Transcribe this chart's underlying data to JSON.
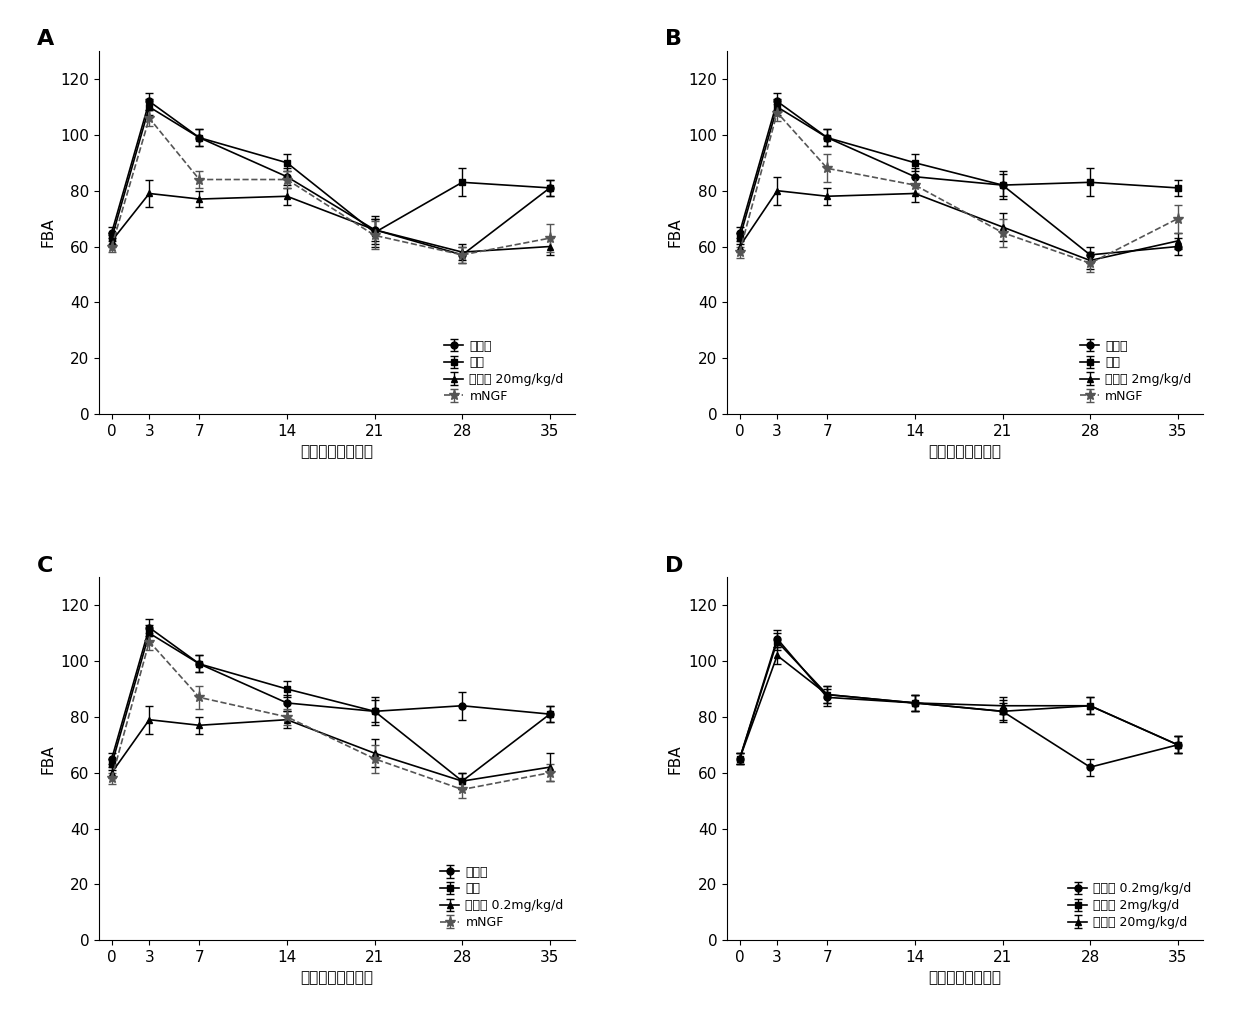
{
  "x": [
    0,
    3,
    7,
    14,
    21,
    28,
    35
  ],
  "panels": [
    {
      "label": "A",
      "series": [
        {
          "name": "假手术",
          "y": [
            65,
            112,
            99,
            85,
            66,
            57,
            81
          ],
          "yerr": [
            2,
            3,
            3,
            3,
            4,
            3,
            3
          ],
          "marker": "o",
          "color": "#000000",
          "linestyle": "-"
        },
        {
          "name": "模型",
          "y": [
            63,
            110,
            99,
            90,
            65,
            83,
            81
          ],
          "yerr": [
            2,
            3,
            3,
            3,
            5,
            5,
            3
          ],
          "marker": "s",
          "color": "#000000",
          "linestyle": "-"
        },
        {
          "name": "槲皮素 20mg/kg/d",
          "y": [
            62,
            79,
            77,
            78,
            66,
            58,
            60
          ],
          "yerr": [
            2,
            5,
            3,
            3,
            5,
            3,
            3
          ],
          "marker": "^",
          "color": "#000000",
          "linestyle": "-"
        },
        {
          "name": "mNGF",
          "y": [
            60,
            106,
            84,
            84,
            64,
            57,
            63
          ],
          "yerr": [
            2,
            3,
            3,
            3,
            5,
            3,
            5
          ],
          "marker": "*",
          "color": "#555555",
          "linestyle": "--"
        }
      ]
    },
    {
      "label": "B",
      "series": [
        {
          "name": "假手术",
          "y": [
            65,
            112,
            99,
            85,
            82,
            57,
            60
          ],
          "yerr": [
            2,
            3,
            3,
            3,
            4,
            3,
            3
          ],
          "marker": "o",
          "color": "#000000",
          "linestyle": "-"
        },
        {
          "name": "模型",
          "y": [
            63,
            110,
            99,
            90,
            82,
            83,
            81
          ],
          "yerr": [
            2,
            3,
            3,
            3,
            5,
            5,
            3
          ],
          "marker": "s",
          "color": "#000000",
          "linestyle": "-"
        },
        {
          "name": "槲皮素 2mg/kg/d",
          "y": [
            60,
            80,
            78,
            79,
            67,
            55,
            62
          ],
          "yerr": [
            2,
            5,
            3,
            3,
            5,
            3,
            3
          ],
          "marker": "^",
          "color": "#000000",
          "linestyle": "-"
        },
        {
          "name": "mNGF",
          "y": [
            58,
            108,
            88,
            82,
            65,
            54,
            70
          ],
          "yerr": [
            2,
            3,
            5,
            3,
            5,
            3,
            5
          ],
          "marker": "*",
          "color": "#555555",
          "linestyle": "--"
        }
      ]
    },
    {
      "label": "C",
      "series": [
        {
          "name": "假手术",
          "y": [
            65,
            112,
            99,
            85,
            82,
            84,
            81
          ],
          "yerr": [
            2,
            3,
            3,
            3,
            4,
            5,
            3
          ],
          "marker": "o",
          "color": "#000000",
          "linestyle": "-"
        },
        {
          "name": "模型",
          "y": [
            63,
            110,
            99,
            90,
            82,
            57,
            81
          ],
          "yerr": [
            2,
            3,
            3,
            3,
            5,
            3,
            3
          ],
          "marker": "s",
          "color": "#000000",
          "linestyle": "-"
        },
        {
          "name": "槲皮素 0.2mg/kg/d",
          "y": [
            60,
            79,
            77,
            79,
            67,
            57,
            62
          ],
          "yerr": [
            2,
            5,
            3,
            3,
            5,
            3,
            5
          ],
          "marker": "^",
          "color": "#000000",
          "linestyle": "-"
        },
        {
          "name": "mNGF",
          "y": [
            58,
            107,
            87,
            80,
            65,
            54,
            60
          ],
          "yerr": [
            2,
            3,
            4,
            3,
            5,
            3,
            3
          ],
          "marker": "*",
          "color": "#555555",
          "linestyle": "--"
        }
      ]
    },
    {
      "label": "D",
      "series": [
        {
          "name": "槲皮素 0.2mg/kg/d",
          "y": [
            65,
            108,
            87,
            85,
            82,
            62,
            70
          ],
          "yerr": [
            2,
            3,
            3,
            3,
            4,
            3,
            3
          ],
          "marker": "o",
          "color": "#000000",
          "linestyle": "-"
        },
        {
          "name": "槲皮素 2mg/kg/d",
          "y": [
            65,
            107,
            88,
            85,
            82,
            84,
            70
          ],
          "yerr": [
            2,
            3,
            3,
            3,
            3,
            3,
            3
          ],
          "marker": "s",
          "color": "#000000",
          "linestyle": "-"
        },
        {
          "name": "槲皮素 20mg/kg/d",
          "y": [
            65,
            102,
            88,
            85,
            84,
            84,
            70
          ],
          "yerr": [
            2,
            3,
            3,
            3,
            3,
            3,
            3
          ],
          "marker": "^",
          "color": "#000000",
          "linestyle": "-"
        }
      ]
    }
  ],
  "xlabel": "损伤后时间（天）",
  "xlabel_D": "损伤后时间（天）",
  "ylabel": "FBA",
  "ylim": [
    0,
    130
  ],
  "yticks": [
    0,
    20,
    40,
    60,
    80,
    100,
    120
  ],
  "xticks": [
    0,
    3,
    7,
    14,
    21,
    28,
    35
  ],
  "background_color": "#ffffff",
  "font_size": 11,
  "legend_font_size": 9
}
